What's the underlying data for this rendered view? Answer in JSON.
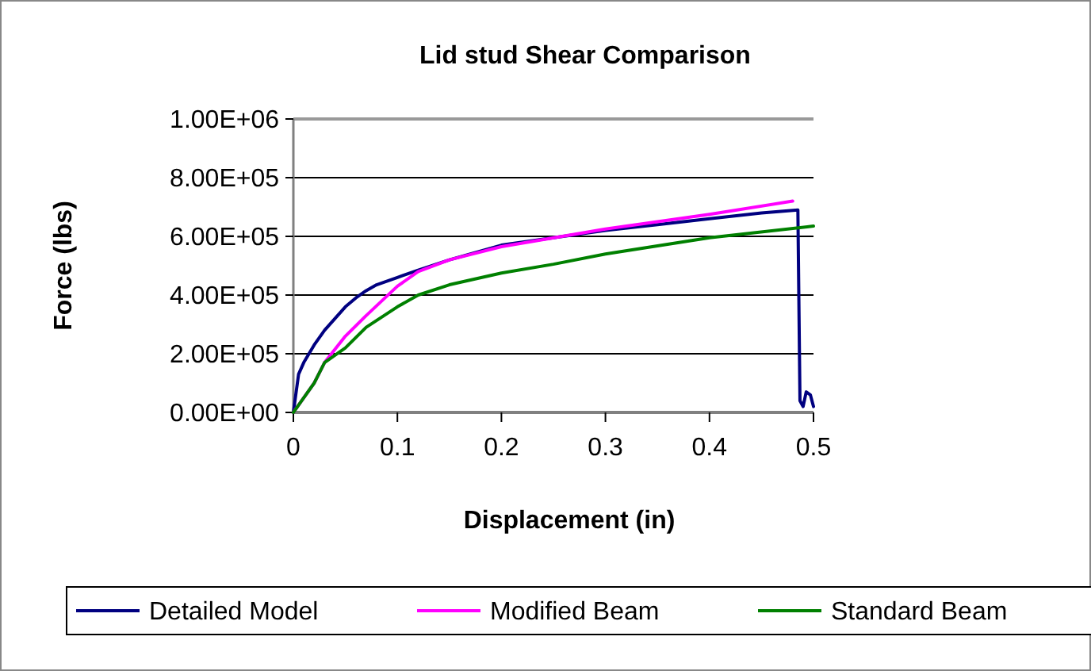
{
  "chart_data": {
    "type": "line",
    "title": "Lid stud Shear Comparison",
    "xlabel": "Displacement (in)",
    "ylabel": "Force (lbs)",
    "xlim": [
      0,
      0.5
    ],
    "xticks": [
      0,
      0.1,
      0.2,
      0.3,
      0.4,
      0.5
    ],
    "ylim": [
      0,
      1000000
    ],
    "yticks": [
      {
        "value": 0,
        "label": "0.00E+00"
      },
      {
        "value": 200000,
        "label": "2.00E+05"
      },
      {
        "value": 400000,
        "label": "4.00E+05"
      },
      {
        "value": 600000,
        "label": "6.00E+05"
      },
      {
        "value": 800000,
        "label": "8.00E+05"
      },
      {
        "value": 1000000,
        "label": "1.00E+06"
      }
    ],
    "grid": "y",
    "legend": "bottom",
    "marker": "none",
    "line_style": "solid",
    "series": [
      {
        "name": "Detailed Model",
        "color": "#000080",
        "x": [
          0,
          0.005,
          0.01,
          0.02,
          0.03,
          0.04,
          0.05,
          0.06,
          0.07,
          0.08,
          0.1,
          0.12,
          0.15,
          0.2,
          0.25,
          0.3,
          0.35,
          0.4,
          0.45,
          0.485,
          0.487,
          0.49,
          0.493,
          0.497,
          0.5
        ],
        "values": [
          0,
          130000,
          170000,
          230000,
          280000,
          320000,
          360000,
          390000,
          415000,
          435000,
          460000,
          485000,
          520000,
          570000,
          595000,
          620000,
          640000,
          660000,
          680000,
          690000,
          40000,
          20000,
          70000,
          60000,
          20000
        ]
      },
      {
        "name": "Modified Beam",
        "color": "#ff00ff",
        "x": [
          0,
          0.02,
          0.03,
          0.05,
          0.07,
          0.1,
          0.12,
          0.15,
          0.2,
          0.3,
          0.4,
          0.48
        ],
        "values": [
          0,
          100000,
          170000,
          260000,
          330000,
          430000,
          480000,
          520000,
          565000,
          625000,
          675000,
          720000
        ]
      },
      {
        "name": "Standard Beam",
        "color": "#008000",
        "x": [
          0,
          0.02,
          0.03,
          0.05,
          0.07,
          0.1,
          0.12,
          0.15,
          0.2,
          0.25,
          0.3,
          0.4,
          0.5
        ],
        "values": [
          0,
          100000,
          170000,
          220000,
          290000,
          360000,
          400000,
          435000,
          475000,
          505000,
          540000,
          595000,
          635000
        ]
      }
    ]
  }
}
